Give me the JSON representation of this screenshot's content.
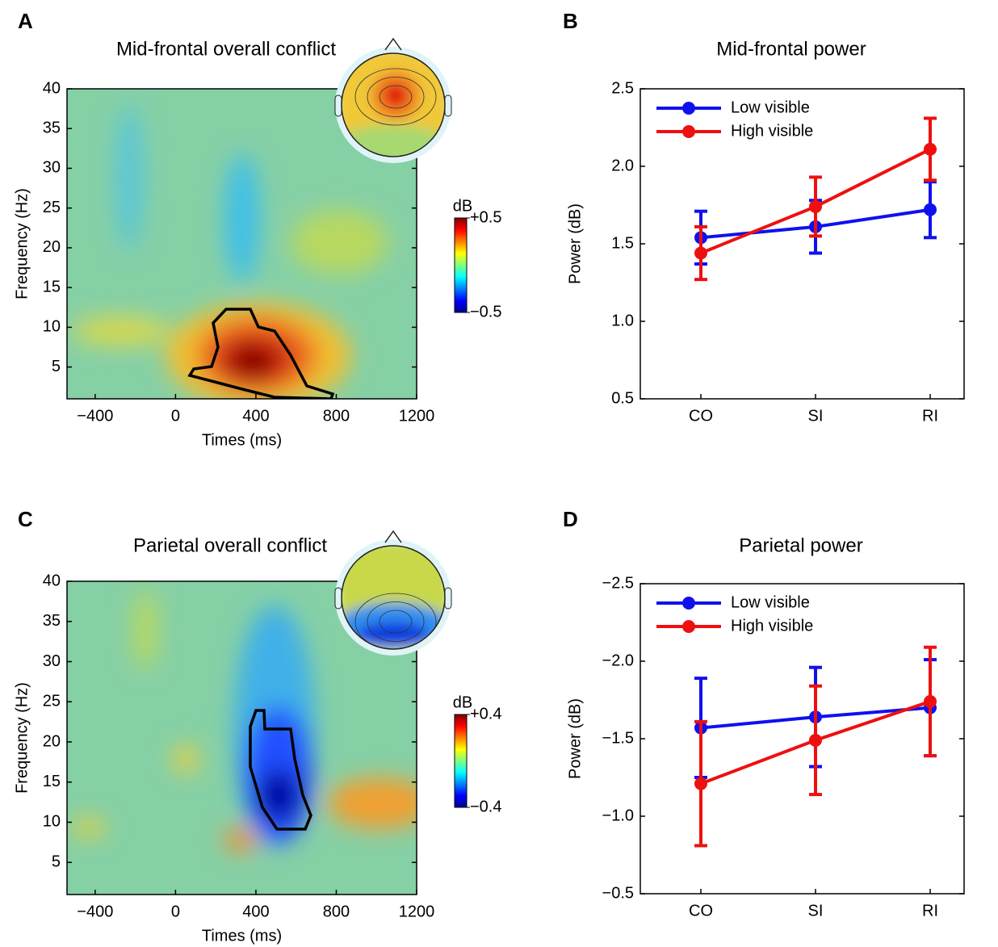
{
  "chart_data": [
    {
      "type": "heatmap",
      "panel": "A",
      "title": "Mid-frontal overall conflict",
      "xlabel": "Times (ms)",
      "ylabel": "Frequency (Hz)",
      "xlim": [
        -540,
        1200
      ],
      "xticks": [
        {
          "value": -400,
          "label": "−400"
        },
        0,
        400,
        800,
        1200
      ],
      "ylim": [
        1,
        40
      ],
      "yticks": [
        5,
        10,
        15,
        20,
        25,
        30,
        35,
        40
      ],
      "colormap": "jet",
      "colorbar": {
        "label": "dB",
        "lim": [
          -0.5,
          0.5
        ],
        "ticks": [
          {
            "value": 0.5,
            "label": "+0.5"
          },
          {
            "value": -0.5,
            "label": "−0.5"
          }
        ]
      }
    },
    {
      "type": "line",
      "panel": "B",
      "title": "Mid-frontal  power",
      "ylabel": "Power (dB)",
      "categories": [
        "CO",
        "SI",
        "RI"
      ],
      "ylim": [
        0.5,
        2.5
      ],
      "yticks": [
        0.5,
        {
          "value": 1,
          "label": "1.0"
        },
        1.5,
        {
          "value": 2,
          "label": "2.0"
        },
        2.5
      ],
      "legend": "upper left",
      "series": [
        {
          "name": "Low visible",
          "color": "#1010ee",
          "values": [
            1.54,
            1.61,
            1.72
          ],
          "errors": [
            0.17,
            0.17,
            0.18
          ]
        },
        {
          "name": "High visible",
          "color": "#ee1010",
          "values": [
            1.44,
            1.74,
            2.11
          ],
          "errors": [
            0.17,
            0.19,
            0.2
          ]
        }
      ]
    },
    {
      "type": "heatmap",
      "panel": "C",
      "title": "Parietal overall conflict",
      "xlabel": "Times (ms)",
      "ylabel": "Frequency (Hz)",
      "xlim": [
        -540,
        1200
      ],
      "xticks": [
        {
          "value": -400,
          "label": "−400"
        },
        0,
        400,
        800,
        1200
      ],
      "ylim": [
        1,
        40
      ],
      "yticks": [
        5,
        10,
        15,
        20,
        25,
        30,
        35,
        40
      ],
      "colormap": "jet",
      "colorbar": {
        "label": "dB",
        "lim": [
          -0.4,
          0.4
        ],
        "ticks": [
          {
            "value": 0.4,
            "label": "+0.4"
          },
          {
            "value": -0.4,
            "label": "−0.4"
          }
        ]
      }
    },
    {
      "type": "line",
      "panel": "D",
      "title": "Parietal power",
      "ylabel": "Power (dB)",
      "categories": [
        "CO",
        "SI",
        "RI"
      ],
      "ylim": [
        -0.5,
        -2.5
      ],
      "yticks": [
        {
          "value": -0.5,
          "label": "−0.5"
        },
        {
          "value": -1,
          "label": "−1.0"
        },
        {
          "value": -1.5,
          "label": "−1.5"
        },
        {
          "value": -2,
          "label": "−2.0"
        },
        {
          "value": -2.5,
          "label": "−2.5"
        }
      ],
      "legend": "upper left",
      "series": [
        {
          "name": "Low visible",
          "color": "#1010ee",
          "values": [
            -1.57,
            -1.64,
            -1.7
          ],
          "errors": [
            0.32,
            0.32,
            0.31
          ]
        },
        {
          "name": "High visible",
          "color": "#ee1010",
          "values": [
            -1.21,
            -1.49,
            -1.74
          ],
          "errors": [
            0.4,
            0.35,
            0.35
          ]
        }
      ]
    }
  ]
}
